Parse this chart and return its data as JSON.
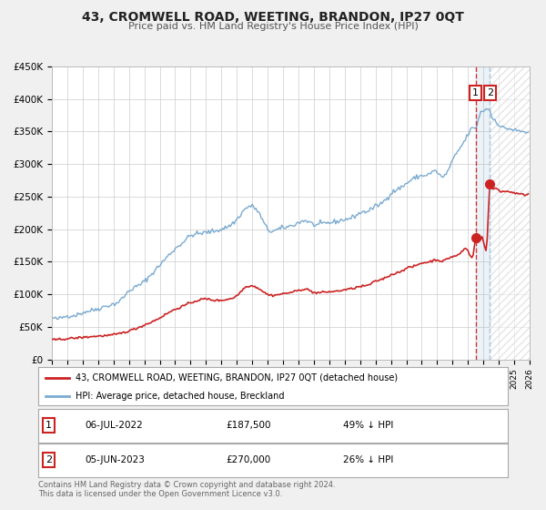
{
  "title": "43, CROMWELL ROAD, WEETING, BRANDON, IP27 0QT",
  "subtitle": "Price paid vs. HM Land Registry's House Price Index (HPI)",
  "legend_line1": "43, CROMWELL ROAD, WEETING, BRANDON, IP27 0QT (detached house)",
  "legend_line2": "HPI: Average price, detached house, Breckland",
  "footnote1": "Contains HM Land Registry data © Crown copyright and database right 2024.",
  "footnote2": "This data is licensed under the Open Government Licence v3.0.",
  "sale_color": "#cc2222",
  "hpi_color": "#7aaad0",
  "sale1_date_x": 2022.5,
  "sale1_price": 187500,
  "sale1_label": "06-JUL-2022",
  "sale1_pct": "49% ↓ HPI",
  "sale1_price_str": "£187,500",
  "sale2_date_x": 2023.42,
  "sale2_price": 270000,
  "sale2_label": "05-JUN-2023",
  "sale2_pct": "26% ↓ HPI",
  "sale2_price_str": "£270,000",
  "xmin": 1995,
  "xmax": 2026,
  "ymin": 0,
  "ymax": 450000,
  "yticks": [
    0,
    50000,
    100000,
    150000,
    200000,
    250000,
    300000,
    350000,
    400000,
    450000
  ],
  "ylabels": [
    "£0",
    "£50K",
    "£100K",
    "£150K",
    "£200K",
    "£250K",
    "£300K",
    "£350K",
    "£400K",
    "£450K"
  ],
  "bg_color": "#f0f0f0",
  "plot_bg": "#ffffff",
  "grid_color": "#cccccc",
  "hatch_color": "#cccccc"
}
